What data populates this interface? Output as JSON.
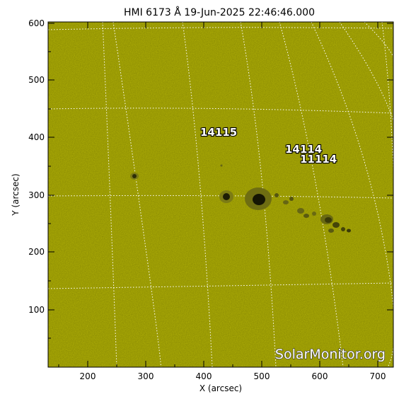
{
  "title": "HMI 6173 Å 19-Jun-2025 22:46:46.000",
  "xlabel": "X (arcsec)",
  "ylabel": "Y (arcsec)",
  "x_ticks": [
    "200",
    "300",
    "400",
    "500",
    "600",
    "700"
  ],
  "y_ticks": [
    "100",
    "200",
    "300",
    "400",
    "500",
    "600"
  ],
  "regions": [
    {
      "label": "14115"
    },
    {
      "label": "14114"
    },
    {
      "label": "11114"
    }
  ],
  "watermark": "SolarMonitor.org",
  "colors": {
    "disk": "#b2b205",
    "grid": "#ffffff",
    "frame": "#000000"
  }
}
